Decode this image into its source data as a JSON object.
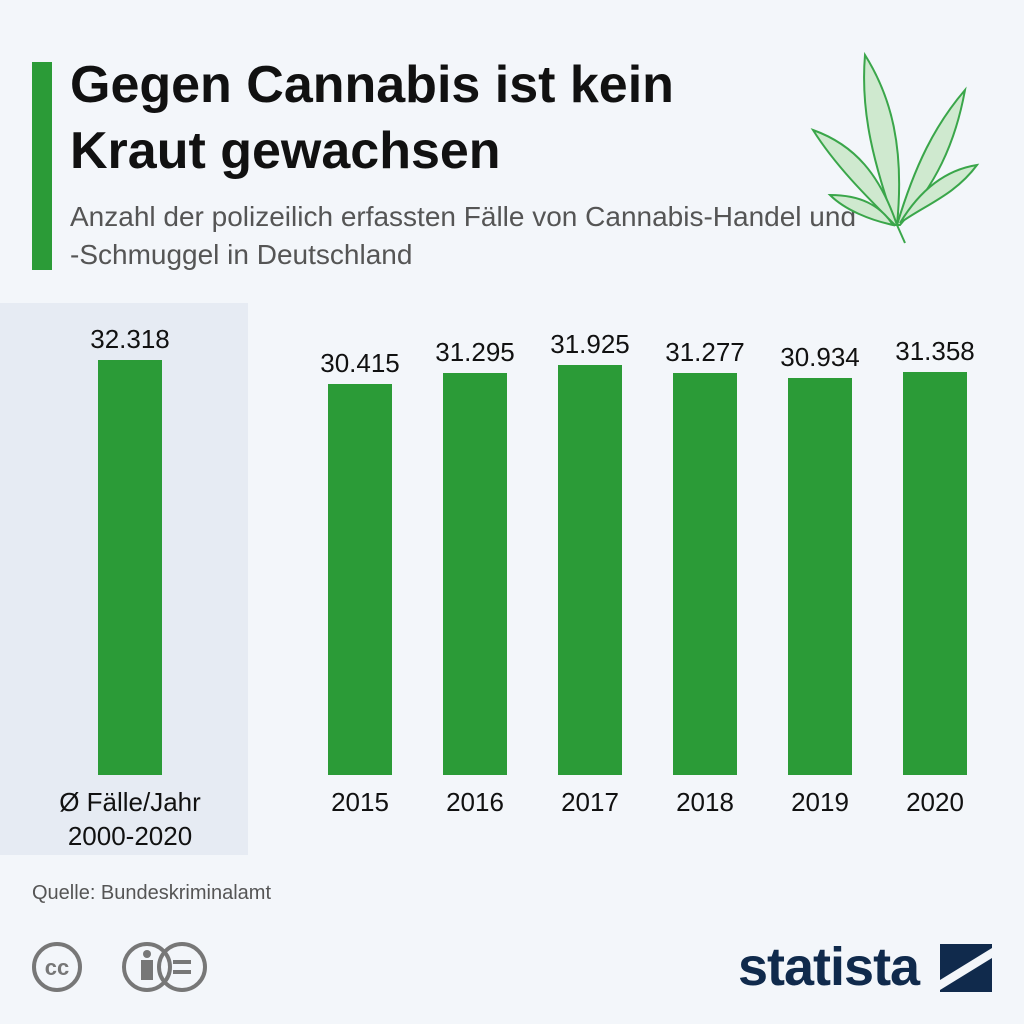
{
  "chart_data": {
    "type": "bar",
    "title": "Gegen Cannabis ist kein Kraut gewachsen",
    "subtitle": "Anzahl der polizeilich erfassten Fälle von Cannabis-Handel und -Schmuggel in Deutschland",
    "categories": [
      "Ø Fälle/Jahr 2000-2020",
      "2015",
      "2016",
      "2017",
      "2018",
      "2019",
      "2020"
    ],
    "values": [
      32318,
      30415,
      31295,
      31925,
      31277,
      30934,
      31358
    ],
    "value_labels": [
      "32.318",
      "30.415",
      "31.295",
      "31.925",
      "31.277",
      "30.934",
      "31.358"
    ],
    "color": "#2b9b37",
    "source": "Quelle: Bundeskriminalamt"
  },
  "license": {
    "cc": "cc"
  },
  "brand": "statista"
}
